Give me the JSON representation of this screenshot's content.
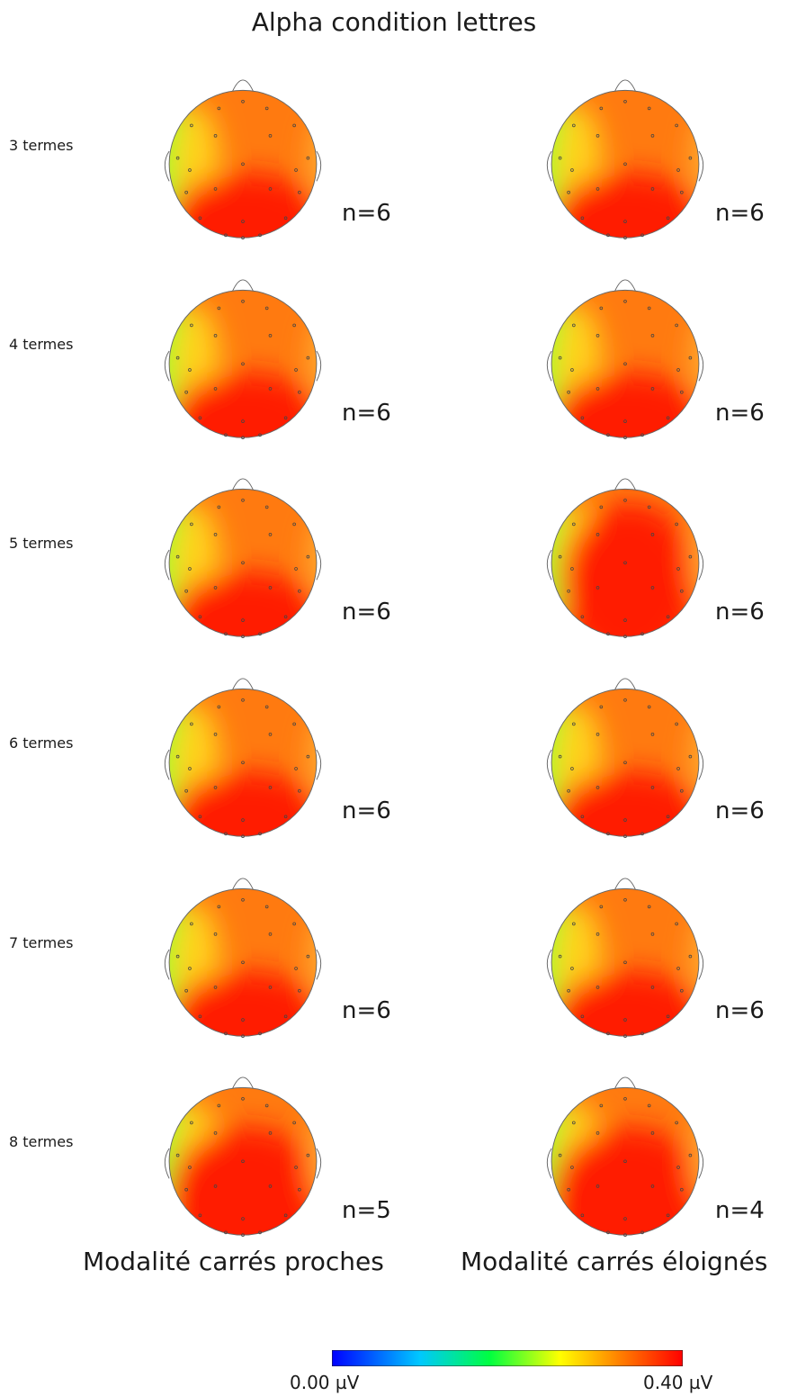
{
  "title": "Alpha condition lettres",
  "rows": [
    {
      "label": "3 termes",
      "n_left": "n=6",
      "n_right": "n=6"
    },
    {
      "label": "4 termes",
      "n_left": "n=6",
      "n_right": "n=6"
    },
    {
      "label": "5 termes",
      "n_left": "n=6",
      "n_right": "n=6"
    },
    {
      "label": "6 termes",
      "n_left": "n=6",
      "n_right": "n=6"
    },
    {
      "label": "7 termes",
      "n_left": "n=6",
      "n_right": "n=6"
    },
    {
      "label": "8 termes",
      "n_left": "n=5",
      "n_right": "n=4"
    }
  ],
  "columns": [
    "Modalité carrés proches",
    "Modalité carrés éloignés"
  ],
  "colorbar": {
    "min_label": "0.00 µV",
    "max_label": "0.40 µV",
    "colors": [
      "#0000ff",
      "#00c8ff",
      "#00ff40",
      "#ffff00",
      "#ff8000",
      "#ff0000"
    ]
  }
}
